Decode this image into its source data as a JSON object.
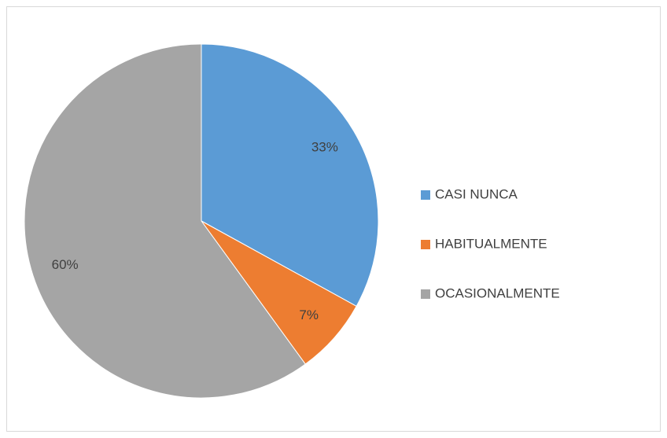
{
  "chart_data": {
    "type": "pie",
    "categories": [
      "CASI NUNCA",
      "HABITUALMENTE",
      "OCASIONALMENTE"
    ],
    "values": [
      33,
      7,
      60
    ],
    "value_labels": [
      "33%",
      "7%",
      "60%"
    ],
    "colors": [
      "#5b9bd5",
      "#ed7d31",
      "#a5a5a5"
    ],
    "legend": "right"
  }
}
